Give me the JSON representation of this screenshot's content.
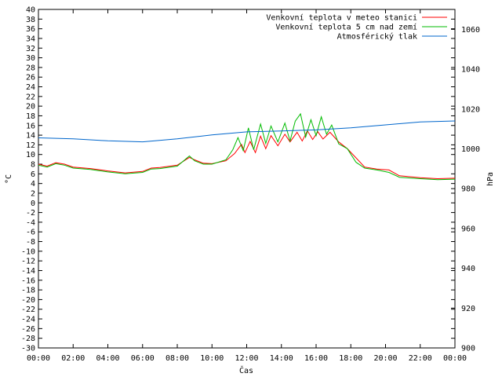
{
  "chart_data": {
    "type": "line",
    "xlabel": "Čas",
    "ylabel_left": "°C",
    "ylabel_right": "hPa",
    "x_ticks": [
      "00:00",
      "02:00",
      "04:00",
      "06:00",
      "08:00",
      "10:00",
      "12:00",
      "14:00",
      "16:00",
      "18:00",
      "20:00",
      "22:00",
      "00:00"
    ],
    "x_range_hours": [
      0,
      24
    ],
    "y_left_range": [
      -30,
      40
    ],
    "y_left_ticks": [
      "40",
      "38",
      "36",
      "34",
      "32",
      "30",
      "28",
      "26",
      "24",
      "22",
      "20",
      "18",
      "16",
      "14",
      "12",
      "10",
      "8",
      "6",
      "4",
      "2",
      "0",
      "-2",
      "-4",
      "-6",
      "-8",
      "-10",
      "-12",
      "-14",
      "-16",
      "-18",
      "-20",
      "-22",
      "-24",
      "-26",
      "-28",
      "-30"
    ],
    "y_right_range": [
      900,
      1070
    ],
    "y_right_ticks": [
      "1060",
      "1040",
      "1020",
      "1000",
      "980",
      "960",
      "940",
      "920",
      "900"
    ],
    "grid": false,
    "legend_position": "top-right",
    "series": [
      {
        "name": "Venkovní teplota v meteo stanici",
        "color": "#ff0000",
        "axis": "left",
        "points": [
          [
            0,
            8
          ],
          [
            0.5,
            7.6
          ],
          [
            1,
            8.3
          ],
          [
            1.5,
            8
          ],
          [
            2,
            7.4
          ],
          [
            3,
            7.1
          ],
          [
            4,
            6.6
          ],
          [
            5,
            6.2
          ],
          [
            6,
            6.5
          ],
          [
            6.5,
            7.2
          ],
          [
            7,
            7.3
          ],
          [
            8,
            7.8
          ],
          [
            8.7,
            9.4
          ],
          [
            9,
            8.9
          ],
          [
            9.5,
            8.2
          ],
          [
            10,
            8.1
          ],
          [
            10.8,
            8.7
          ],
          [
            11.3,
            10.2
          ],
          [
            11.7,
            12.1
          ],
          [
            11.9,
            10.4
          ],
          [
            12.2,
            12.7
          ],
          [
            12.5,
            10.4
          ],
          [
            12.8,
            13.8
          ],
          [
            13.1,
            11.2
          ],
          [
            13.4,
            13.9
          ],
          [
            13.8,
            11.8
          ],
          [
            14.2,
            14.2
          ],
          [
            14.5,
            12.6
          ],
          [
            14.9,
            14.6
          ],
          [
            15.2,
            12.8
          ],
          [
            15.5,
            14.9
          ],
          [
            15.8,
            13.1
          ],
          [
            16.1,
            14.7
          ],
          [
            16.4,
            13.2
          ],
          [
            16.8,
            14.6
          ],
          [
            17.3,
            12.6
          ],
          [
            17.8,
            11.2
          ],
          [
            18.3,
            9.3
          ],
          [
            18.8,
            7.4
          ],
          [
            19.5,
            7.0
          ],
          [
            20.2,
            6.8
          ],
          [
            20.8,
            5.6
          ],
          [
            22,
            5.2
          ],
          [
            23,
            5.0
          ],
          [
            24,
            5.1
          ]
        ]
      },
      {
        "name": "Venkovní teplota 5 cm nad zemí",
        "color": "#00bb00",
        "axis": "left",
        "points": [
          [
            0,
            7.8
          ],
          [
            0.5,
            7.4
          ],
          [
            1,
            8.1
          ],
          [
            1.5,
            7.8
          ],
          [
            2,
            7.2
          ],
          [
            3,
            6.9
          ],
          [
            4,
            6.4
          ],
          [
            5,
            6.0
          ],
          [
            6,
            6.3
          ],
          [
            6.5,
            7.0
          ],
          [
            7,
            7.1
          ],
          [
            8,
            7.6
          ],
          [
            8.7,
            9.7
          ],
          [
            9,
            8.7
          ],
          [
            9.5,
            8.0
          ],
          [
            10,
            8.0
          ],
          [
            10.8,
            8.9
          ],
          [
            11.2,
            11.0
          ],
          [
            11.5,
            13.5
          ],
          [
            11.8,
            10.8
          ],
          [
            12.1,
            15.5
          ],
          [
            12.4,
            11.0
          ],
          [
            12.8,
            16.3
          ],
          [
            13.1,
            12.3
          ],
          [
            13.4,
            15.9
          ],
          [
            13.8,
            12.6
          ],
          [
            14.2,
            16.5
          ],
          [
            14.5,
            12.8
          ],
          [
            14.8,
            16.9
          ],
          [
            15.1,
            18.4
          ],
          [
            15.4,
            13.6
          ],
          [
            15.7,
            17.2
          ],
          [
            16,
            13.9
          ],
          [
            16.3,
            17.8
          ],
          [
            16.6,
            14.2
          ],
          [
            16.9,
            16.1
          ],
          [
            17.3,
            12.2
          ],
          [
            17.8,
            11.2
          ],
          [
            18.3,
            8.4
          ],
          [
            18.8,
            7.2
          ],
          [
            19.5,
            6.8
          ],
          [
            20.2,
            6.3
          ],
          [
            20.8,
            5.3
          ],
          [
            22,
            5.0
          ],
          [
            23,
            4.8
          ],
          [
            24,
            4.9
          ]
        ]
      },
      {
        "name": "Atmosférický tlak",
        "color": "#0066cc",
        "axis": "right",
        "points": [
          [
            0,
            1005.5
          ],
          [
            2,
            1005.0
          ],
          [
            4,
            1004.0
          ],
          [
            6,
            1003.5
          ],
          [
            8,
            1005
          ],
          [
            10,
            1007
          ],
          [
            12,
            1008.5
          ],
          [
            14,
            1009
          ],
          [
            16,
            1009.5
          ],
          [
            18,
            1010.5
          ],
          [
            20,
            1012
          ],
          [
            22,
            1013.5
          ],
          [
            24,
            1014
          ]
        ]
      }
    ]
  }
}
